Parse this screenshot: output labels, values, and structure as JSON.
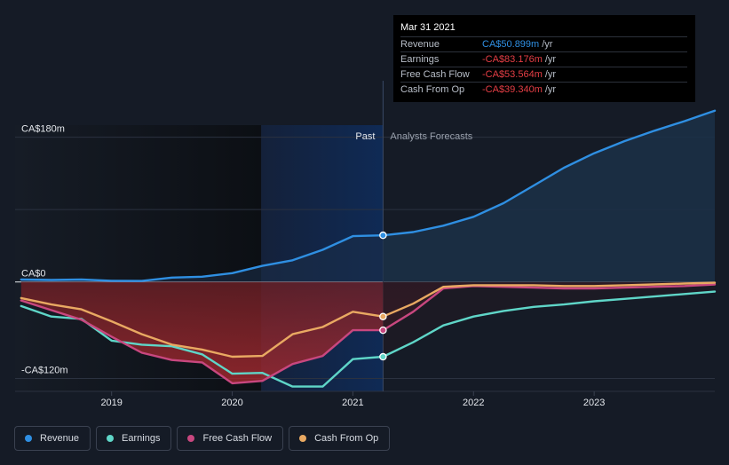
{
  "chart_data": {
    "type": "area",
    "x_unit": "year",
    "xlim": [
      2018.2,
      2024.0
    ],
    "ylim": [
      -136,
      195
    ],
    "y_ticks": [
      {
        "value": 180,
        "label": "CA$180m"
      },
      {
        "value": 0,
        "label": "CA$0"
      },
      {
        "value": -120,
        "label": "-CA$120m"
      }
    ],
    "x_ticks": [
      {
        "value": 2019,
        "label": "2019"
      },
      {
        "value": 2020,
        "label": "2020"
      },
      {
        "value": 2021,
        "label": "2021"
      },
      {
        "value": 2022,
        "label": "2022"
      },
      {
        "value": 2023,
        "label": "2023"
      }
    ],
    "gridlines": [
      180,
      90,
      0,
      -120
    ],
    "divider_x": 2021.25,
    "highlight_start": 2020.24,
    "past_label": "Past",
    "forecast_label": "Analysts Forecasts",
    "series": [
      {
        "name": "Revenue",
        "color": "#2f8fe2",
        "points": [
          [
            2018.25,
            3
          ],
          [
            2018.5,
            2.5
          ],
          [
            2018.75,
            3
          ],
          [
            2019.0,
            1.5
          ],
          [
            2019.25,
            1.2
          ],
          [
            2019.5,
            5.5
          ],
          [
            2019.75,
            6.5
          ],
          [
            2020.0,
            11
          ],
          [
            2020.25,
            20
          ],
          [
            2020.5,
            27
          ],
          [
            2020.75,
            40
          ],
          [
            2021.0,
            57
          ],
          [
            2021.25,
            58
          ],
          [
            2021.5,
            62
          ],
          [
            2021.75,
            70
          ],
          [
            2022.0,
            81
          ],
          [
            2022.25,
            98
          ],
          [
            2022.5,
            120
          ],
          [
            2022.75,
            142
          ],
          [
            2023.0,
            160
          ],
          [
            2023.25,
            175
          ],
          [
            2023.5,
            188
          ],
          [
            2023.75,
            200
          ],
          [
            2024.0,
            213
          ]
        ]
      },
      {
        "name": "Earnings",
        "color": "#5fd6c8",
        "points": [
          [
            2018.25,
            -30
          ],
          [
            2018.5,
            -43
          ],
          [
            2018.75,
            -46
          ],
          [
            2019.0,
            -73
          ],
          [
            2019.25,
            -78
          ],
          [
            2019.5,
            -80
          ],
          [
            2019.75,
            -90
          ],
          [
            2020.0,
            -114
          ],
          [
            2020.25,
            -113
          ],
          [
            2020.5,
            -130
          ],
          [
            2020.75,
            -130
          ],
          [
            2021.0,
            -96
          ],
          [
            2021.25,
            -93
          ],
          [
            2021.5,
            -75
          ],
          [
            2021.75,
            -54
          ],
          [
            2022.0,
            -43
          ],
          [
            2022.25,
            -36
          ],
          [
            2022.5,
            -31
          ],
          [
            2022.75,
            -28
          ],
          [
            2023.0,
            -24
          ],
          [
            2023.25,
            -21
          ],
          [
            2023.5,
            -18
          ],
          [
            2023.75,
            -15
          ],
          [
            2024.0,
            -12
          ]
        ]
      },
      {
        "name": "Free Cash Flow",
        "color": "#c8477f",
        "points": [
          [
            2018.25,
            -23
          ],
          [
            2018.5,
            -35
          ],
          [
            2018.75,
            -47
          ],
          [
            2019.0,
            -68
          ],
          [
            2019.25,
            -88
          ],
          [
            2019.5,
            -97
          ],
          [
            2019.75,
            -100
          ],
          [
            2020.0,
            -126
          ],
          [
            2020.25,
            -123
          ],
          [
            2020.5,
            -102
          ],
          [
            2020.75,
            -92
          ],
          [
            2021.0,
            -60
          ],
          [
            2021.25,
            -60
          ],
          [
            2021.5,
            -37
          ],
          [
            2021.75,
            -8
          ],
          [
            2022.0,
            -5
          ],
          [
            2022.25,
            -6
          ],
          [
            2022.5,
            -7
          ],
          [
            2022.75,
            -8
          ],
          [
            2023.0,
            -8
          ],
          [
            2023.25,
            -7
          ],
          [
            2023.5,
            -6
          ],
          [
            2023.75,
            -5
          ],
          [
            2024.0,
            -3
          ]
        ]
      },
      {
        "name": "Cash From Op",
        "color": "#e9a962",
        "points": [
          [
            2018.25,
            -20
          ],
          [
            2018.5,
            -28
          ],
          [
            2018.75,
            -34
          ],
          [
            2019.0,
            -49
          ],
          [
            2019.25,
            -65
          ],
          [
            2019.5,
            -78
          ],
          [
            2019.75,
            -84
          ],
          [
            2020.0,
            -93
          ],
          [
            2020.25,
            -92
          ],
          [
            2020.5,
            -65
          ],
          [
            2020.75,
            -56
          ],
          [
            2021.0,
            -37
          ],
          [
            2021.25,
            -43
          ],
          [
            2021.5,
            -27
          ],
          [
            2021.75,
            -6
          ],
          [
            2022.0,
            -4
          ],
          [
            2022.25,
            -4
          ],
          [
            2022.5,
            -4
          ],
          [
            2022.75,
            -5
          ],
          [
            2023.0,
            -5
          ],
          [
            2023.25,
            -4
          ],
          [
            2023.5,
            -3
          ],
          [
            2023.75,
            -2
          ],
          [
            2024.0,
            -1
          ]
        ]
      }
    ]
  },
  "tooltip": {
    "date": "Mar 31 2021",
    "rows": [
      {
        "label": "Revenue",
        "value": "CA$50.899m",
        "unit": "/yr",
        "color": "#2f8fe2"
      },
      {
        "label": "Earnings",
        "value": "-CA$83.176m",
        "unit": "/yr",
        "color": "#e53e45"
      },
      {
        "label": "Free Cash Flow",
        "value": "-CA$53.564m",
        "unit": "/yr",
        "color": "#e53e45"
      },
      {
        "label": "Cash From Op",
        "value": "-CA$39.340m",
        "unit": "/yr",
        "color": "#e53e45"
      }
    ]
  },
  "legend": [
    {
      "label": "Revenue",
      "color": "#2f8fe2"
    },
    {
      "label": "Earnings",
      "color": "#5fd6c8"
    },
    {
      "label": "Free Cash Flow",
      "color": "#c8477f"
    },
    {
      "label": "Cash From Op",
      "color": "#e9a962"
    }
  ]
}
